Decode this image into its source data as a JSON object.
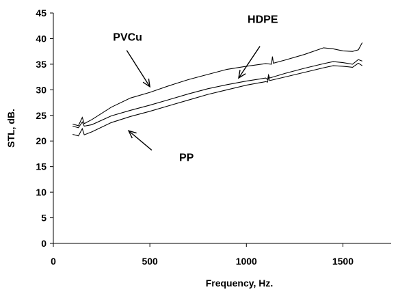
{
  "chart_data": {
    "type": "line",
    "xlabel": "Frequency, Hz.",
    "ylabel": "STL, dB.",
    "xlim": [
      0,
      1750
    ],
    "ylim": [
      0,
      45
    ],
    "xticks": [
      0,
      500,
      1000,
      1500
    ],
    "yticks": [
      0,
      5,
      10,
      15,
      20,
      25,
      30,
      35,
      40,
      45
    ],
    "grid": false,
    "line_color": "#000000",
    "series": [
      {
        "name": "PVCu",
        "x": [
          100,
          130,
          150,
          160,
          200,
          300,
          400,
          500,
          600,
          700,
          800,
          900,
          1000,
          1100,
          1130,
          1135,
          1140,
          1200,
          1300,
          1400,
          1450,
          1500,
          1550,
          1580,
          1600
        ],
        "y": [
          23.3,
          23.0,
          24.6,
          23.4,
          24.2,
          26.6,
          28.4,
          29.5,
          30.8,
          32.0,
          33.0,
          34.0,
          34.6,
          35.1,
          35.0,
          36.5,
          35.2,
          35.8,
          36.9,
          38.2,
          38.0,
          37.6,
          37.5,
          37.8,
          39.2
        ]
      },
      {
        "name": "HDPE",
        "x": [
          100,
          130,
          150,
          160,
          200,
          300,
          400,
          500,
          600,
          700,
          800,
          900,
          1000,
          1100,
          1110,
          1115,
          1120,
          1200,
          1300,
          1400,
          1450,
          1500,
          1550,
          1580,
          1600
        ],
        "y": [
          22.9,
          22.6,
          23.7,
          22.9,
          23.2,
          24.9,
          26.0,
          27.0,
          28.1,
          29.2,
          30.2,
          31.0,
          31.7,
          32.3,
          32.0,
          32.9,
          32.3,
          33.2,
          34.2,
          35.1,
          35.5,
          35.3,
          35.0,
          35.9,
          35.6
        ]
      },
      {
        "name": "PP",
        "x": [
          100,
          130,
          150,
          160,
          200,
          300,
          400,
          500,
          600,
          700,
          800,
          900,
          1000,
          1100,
          1110,
          1115,
          1120,
          1200,
          1300,
          1400,
          1450,
          1500,
          1550,
          1580,
          1600
        ],
        "y": [
          21.3,
          21.0,
          22.4,
          21.2,
          21.8,
          23.6,
          24.8,
          25.8,
          26.9,
          28.0,
          29.1,
          30.0,
          30.9,
          31.6,
          31.5,
          32.5,
          31.8,
          32.5,
          33.4,
          34.3,
          34.7,
          34.6,
          34.4,
          35.2,
          34.7
        ]
      }
    ],
    "annotations": [
      {
        "label": "PVCu",
        "arrow_from": [
          380,
          37.7
        ],
        "arrow_to": [
          500,
          30.6
        ]
      },
      {
        "label": "HDPE",
        "arrow_from": [
          1070,
          38.5
        ],
        "arrow_to": [
          960,
          32.3
        ]
      },
      {
        "label": "PP",
        "arrow_from": [
          510,
          18.2
        ],
        "arrow_to": [
          390,
          22.0
        ]
      }
    ]
  }
}
